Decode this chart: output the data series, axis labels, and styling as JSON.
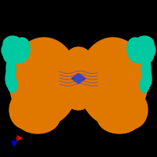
{
  "background_color": "#000000",
  "figure_size": [
    2.0,
    2.0
  ],
  "dpi": 100,
  "main_structure": {
    "orange_color": "#E07800",
    "teal_color": "#00C8A0",
    "blue_color": "#4444CC",
    "dark_blue_color": "#3333AA"
  },
  "axis_indicator": {
    "x_color": "#FF0000",
    "y_color": "#0000FF"
  }
}
